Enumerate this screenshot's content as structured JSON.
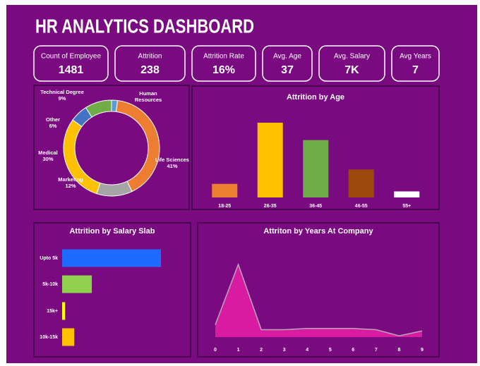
{
  "header": {
    "title": "HR ANALYTICS DASHBOARD"
  },
  "kpis": [
    {
      "label": "Count of Employee",
      "value": "1481"
    },
    {
      "label": "Attrition",
      "value": "238"
    },
    {
      "label": "Attrition Rate",
      "value": "16%"
    },
    {
      "label": "Avg. Age",
      "value": "37"
    },
    {
      "label": "Avg. Salary",
      "value": "7K"
    },
    {
      "label": "Avg Years",
      "value": "7"
    }
  ],
  "chart_data": [
    {
      "type": "donut",
      "categories": [
        "Human Resources",
        "Life Sciences",
        "Marketing",
        "Medical",
        "Other",
        "Technical Degree"
      ],
      "values": [
        2,
        41,
        12,
        30,
        6,
        9
      ],
      "value_labels": [
        null,
        "41%",
        "12%",
        "30%",
        "6%",
        "9%"
      ],
      "colors": [
        "#5b9bd5",
        "#ed7d31",
        "#a5a5a5",
        "#ffc000",
        "#4472c4",
        "#70ad47"
      ]
    },
    {
      "type": "bar",
      "title": "Attrition by Age",
      "categories": [
        "18-25",
        "26-35",
        "36-45",
        "46-55",
        "55+"
      ],
      "values": [
        18,
        99,
        76,
        37,
        8
      ],
      "colors": [
        "#ed7d31",
        "#ffc000",
        "#70ad47",
        "#9e480e",
        "#ffffff"
      ]
    },
    {
      "type": "barh",
      "title": "Attrition by Salary Slab",
      "categories": [
        "Upto 5k",
        "5k-10k",
        "15k+",
        "10k-15k"
      ],
      "values": [
        163,
        49,
        5,
        20
      ],
      "colors": [
        "#1f6bff",
        "#92d050",
        "#ffff00",
        "#ffc000"
      ]
    },
    {
      "type": "area",
      "title": "Attriton by Years At Company",
      "x": [
        0,
        1,
        2,
        3,
        4,
        5,
        6,
        7,
        8,
        9
      ],
      "values": [
        10,
        59,
        6,
        6,
        7,
        7,
        7,
        6,
        1,
        5
      ],
      "xlim": [
        0,
        9
      ],
      "xticks": [
        0,
        1,
        2,
        3,
        4,
        5,
        6,
        7,
        8,
        9
      ],
      "color": "#d81ba0"
    }
  ]
}
